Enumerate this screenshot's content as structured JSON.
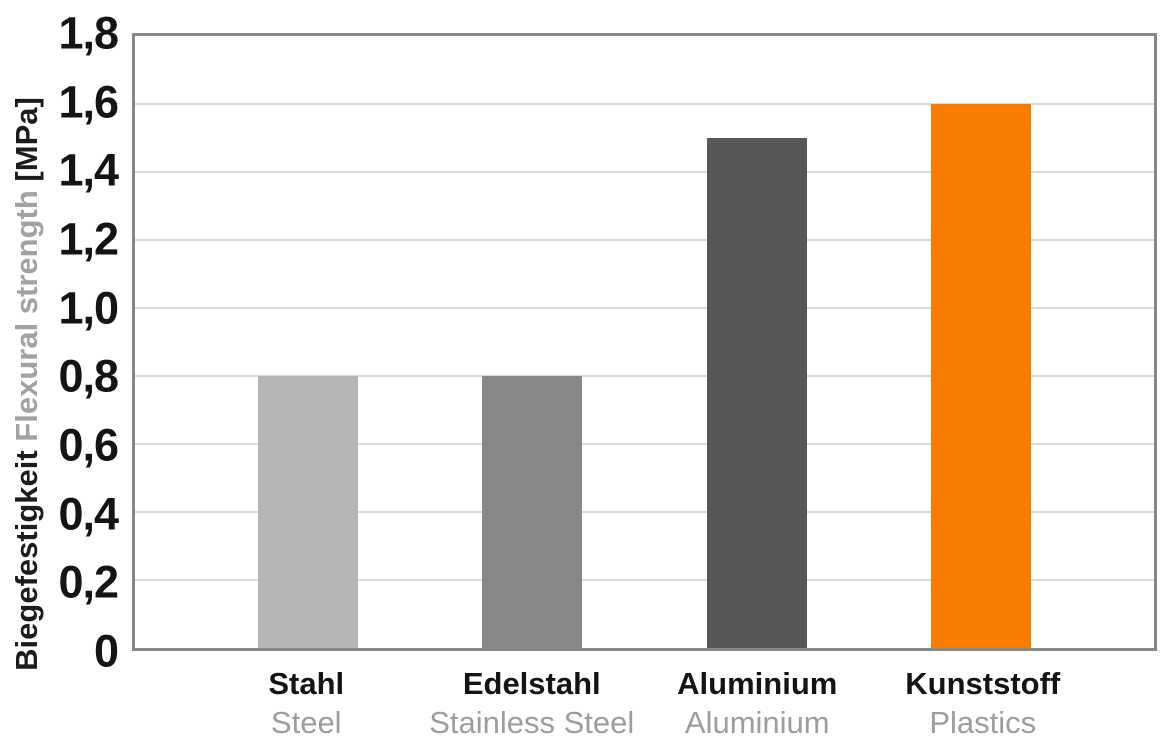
{
  "chart_data": {
    "type": "bar",
    "title": "",
    "ylabel_de": "Biegefestigkeit",
    "ylabel_en": "Flexural strength",
    "ylabel_unit": "[MPa]",
    "ylim": [
      0,
      1.8
    ],
    "grid": "horizontal",
    "legend": "none",
    "decimal_separator": ",",
    "y_ticks": [
      {
        "value": 0,
        "label": "0"
      },
      {
        "value": 0.2,
        "label": "0,2"
      },
      {
        "value": 0.4,
        "label": "0,4"
      },
      {
        "value": 0.6,
        "label": "0,6"
      },
      {
        "value": 0.8,
        "label": "0,8"
      },
      {
        "value": 1.0,
        "label": "1,0"
      },
      {
        "value": 1.2,
        "label": "1,2"
      },
      {
        "value": 1.4,
        "label": "1,4"
      },
      {
        "value": 1.6,
        "label": "1,6"
      },
      {
        "value": 1.8,
        "label": "1,8"
      }
    ],
    "categories": [
      {
        "label_de": "Stahl",
        "label_en": "Steel",
        "value": 0.8,
        "color": "#b5b5b5"
      },
      {
        "label_de": "Edelstahl",
        "label_en": "Stainless Steel",
        "value": 0.8,
        "color": "#878787"
      },
      {
        "label_de": "Aluminium",
        "label_en": "Aluminium",
        "value": 1.5,
        "color": "#575757"
      },
      {
        "label_de": "Kunststoff",
        "label_en": "Plastics",
        "value": 1.6,
        "color": "#f87c00"
      }
    ]
  },
  "colors": {
    "plot_border": "#878787",
    "gridline": "#d9d9d9",
    "tick_text": "#141414",
    "secondary_text": "#9d9d9d",
    "accent_orange": "#f87c00",
    "background": "#ffffff"
  }
}
